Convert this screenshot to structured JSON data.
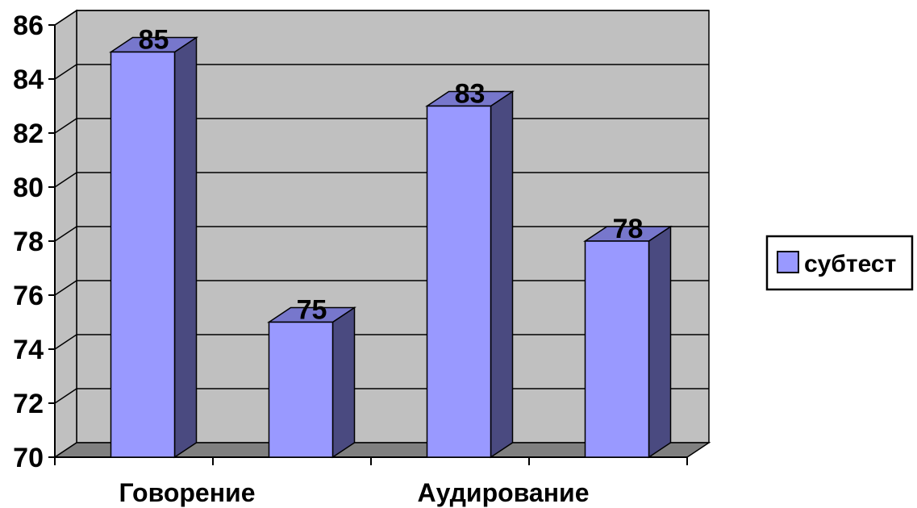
{
  "chart_data": {
    "type": "bar",
    "categories": [
      "Говорение",
      "",
      "Аудирование",
      ""
    ],
    "series": [
      {
        "name": "субтест",
        "values": [
          85,
          75,
          83,
          78
        ]
      }
    ],
    "ylim": [
      70,
      86
    ],
    "yticks": [
      70,
      72,
      74,
      76,
      78,
      80,
      82,
      84,
      86
    ],
    "grid": true,
    "legend": "right",
    "style": "3d",
    "colors": {
      "bar_front": "#9999ff",
      "bar_side": "#4a4a80",
      "bar_top": "#7777cc",
      "wall": "#c0c0c0",
      "floor": "#808080",
      "gridline": "#000000"
    }
  }
}
